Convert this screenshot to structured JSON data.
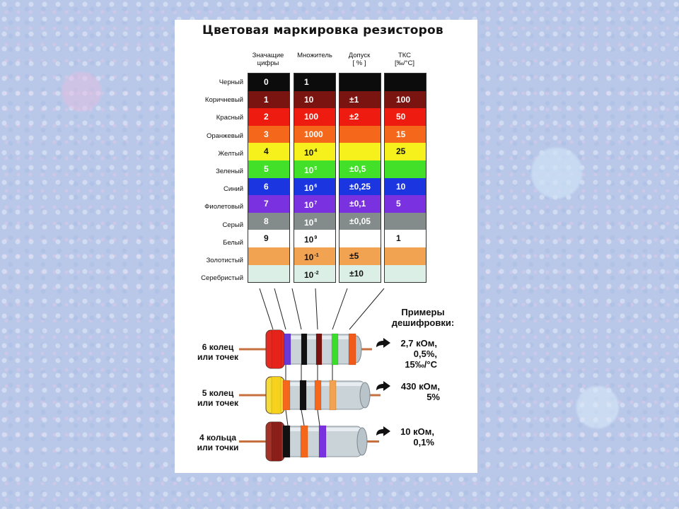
{
  "title": "Цветовая маркировка резисторов",
  "columns": {
    "digits": "Значащие\nцифры",
    "multiplier": "Множитель",
    "tolerance": "Допуск\n[ % ]",
    "tkc": "ТКС\n[‰/°С]"
  },
  "rows": [
    {
      "label": "Черный",
      "color": "#0c0c0c",
      "text_color": "#ffffff",
      "digit": "0",
      "mult_base": "1",
      "mult_exp": "",
      "tol": "",
      "tkc": ""
    },
    {
      "label": "Коричневый",
      "color": "#7a1410",
      "text_color": "#ffffff",
      "digit": "1",
      "mult_base": "10",
      "mult_exp": "",
      "tol": "±1",
      "tkc": "100"
    },
    {
      "label": "Красный",
      "color": "#ee1c10",
      "text_color": "#ffffff",
      "digit": "2",
      "mult_base": "100",
      "mult_exp": "",
      "tol": "±2",
      "tkc": "50"
    },
    {
      "label": "Оранжевый",
      "color": "#f5671a",
      "text_color": "#ffffff",
      "digit": "3",
      "mult_base": "1000",
      "mult_exp": "",
      "tol": "",
      "tkc": "15"
    },
    {
      "label": "Желтый",
      "color": "#f6f01c",
      "text_color": "#111111",
      "digit": "4",
      "mult_base": "10",
      "mult_exp": "4",
      "tol": "",
      "tkc": "25"
    },
    {
      "label": "Зеленый",
      "color": "#43e02a",
      "text_color": "#ffffff",
      "digit": "5",
      "mult_base": "10",
      "mult_exp": "5",
      "tol": "±0,5",
      "tkc": ""
    },
    {
      "label": "Синий",
      "color": "#1b35e0",
      "text_color": "#ffffff",
      "digit": "6",
      "mult_base": "10",
      "mult_exp": "6",
      "tol": "±0,25",
      "tkc": "10"
    },
    {
      "label": "Фиолетовый",
      "color": "#7a32e0",
      "text_color": "#ffffff",
      "digit": "7",
      "mult_base": "10",
      "mult_exp": "7",
      "tol": "±0,1",
      "tkc": "5"
    },
    {
      "label": "Серый",
      "color": "#838b8b",
      "text_color": "#ffffff",
      "digit": "8",
      "mult_base": "10",
      "mult_exp": "8",
      "tol": "±0,05",
      "tkc": ""
    },
    {
      "label": "Белый",
      "color": "#ffffff",
      "text_color": "#111111",
      "digit": "9",
      "mult_base": "10",
      "mult_exp": "9",
      "tol": "",
      "tkc": "1"
    },
    {
      "label": "Золотистый",
      "color": "#f2a352",
      "text_color": "#111111",
      "digit": "",
      "mult_base": "10",
      "mult_exp": "-1",
      "tol": "±5",
      "tkc": ""
    },
    {
      "label": "Серебристый",
      "color": "#dbefe6",
      "text_color": "#111111",
      "digit": "",
      "mult_base": "10",
      "mult_exp": "-2",
      "tol": "±10",
      "tkc": ""
    }
  ],
  "examples_title": "Примеры\nдешифровки:",
  "resistors": [
    {
      "label": "6 колец\nили точек",
      "result": "2,7 кОм,\n0,5%,\n15‰/°С",
      "body_color": "#c9d3d8",
      "cap_color": "#e52a22",
      "bands": [
        "#e5231a",
        "#6a3ad6",
        "#111111",
        "#7a1410",
        "#3ade2a",
        "#f05a1a"
      ]
    },
    {
      "label": "5 колец\nили точек",
      "result": "430 кОм,\n5%",
      "body_color": "#c9d3d8",
      "cap_color": "#f3dc3a",
      "bands": [
        "#f6d21c",
        "#f5671a",
        "#111111",
        "#f5671a",
        "#f2a352"
      ]
    },
    {
      "label": "4 кольца\nили точки",
      "result": "10 кОм,\n0,1%",
      "body_color": "#c9d3d8",
      "cap_color": "#a2312a",
      "bands": [
        "#8a1e18",
        "#111111",
        "#f5671a",
        "#7a32e0"
      ]
    }
  ]
}
